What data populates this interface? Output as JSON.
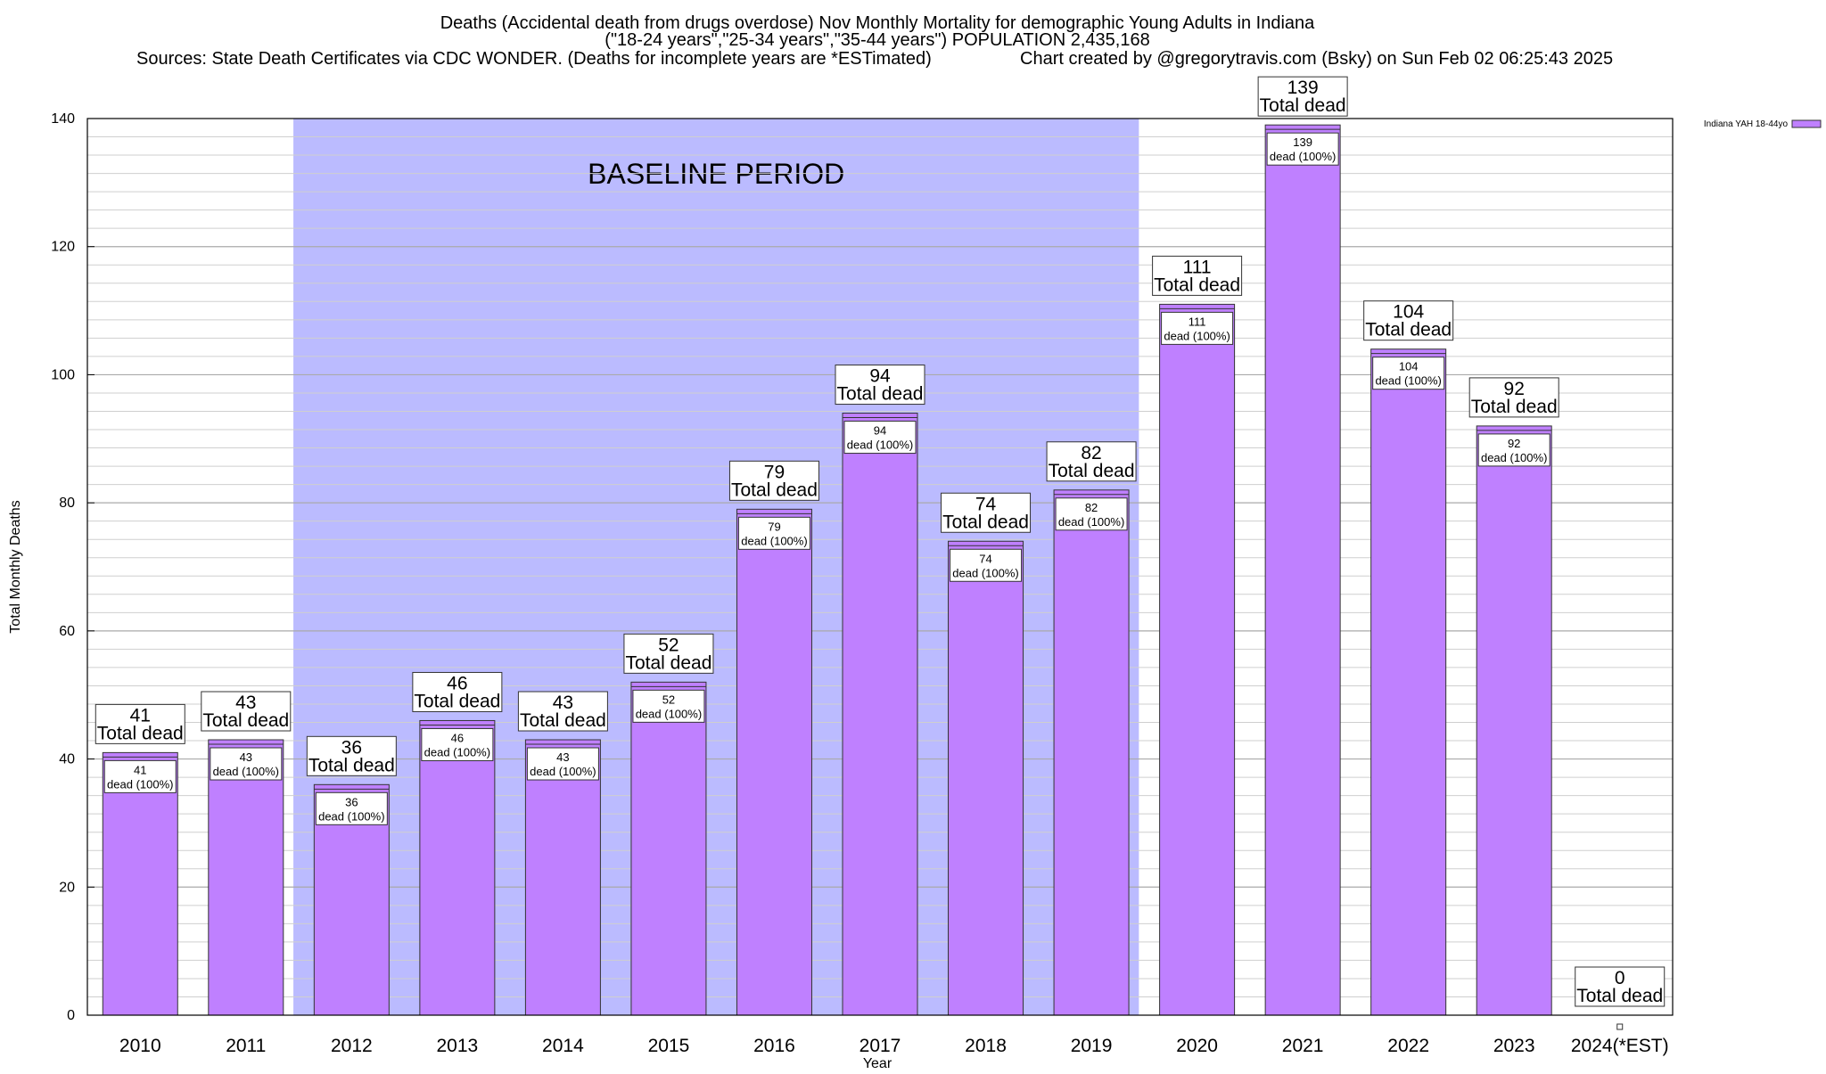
{
  "chart_data": {
    "type": "bar",
    "title_lines": [
      "Deaths (Accidental death from drugs overdose) Nov Monthly Mortality for demographic Young Adults in Indiana",
      "(\"18-24 years\",\"25-34 years\",\"35-44 years\") POPULATION 2,435,168"
    ],
    "sources": "Sources: State Death Certificates via CDC WONDER. (Deaths for incomplete years are *ESTimated)",
    "credit": "Chart created by @gregorytravis.com (Bsky) on Sun Feb 02 06:25:43 2025",
    "xlabel": "Year",
    "ylabel": "Total Monthly Deaths",
    "ylim": [
      0,
      140
    ],
    "y_ticks": [
      0,
      20,
      40,
      60,
      80,
      100,
      120,
      140
    ],
    "grid": true,
    "legend": {
      "position": "top-right",
      "label": "Indiana YAH 18-44yo"
    },
    "series_color": "#bf80ff",
    "baseline_color": "#bbbbff",
    "baseline": {
      "label": "BASELINE PERIOD",
      "start": "2012",
      "end": "2019"
    },
    "categories": [
      "2010",
      "2011",
      "2012",
      "2013",
      "2014",
      "2015",
      "2016",
      "2017",
      "2018",
      "2019",
      "2020",
      "2021",
      "2022",
      "2023",
      "2024(*EST)"
    ],
    "values": [
      41,
      43,
      36,
      46,
      43,
      52,
      79,
      94,
      74,
      82,
      111,
      139,
      104,
      92,
      0
    ],
    "top_label_text": "Total dead",
    "inner_label_text": "dead (100%)"
  }
}
